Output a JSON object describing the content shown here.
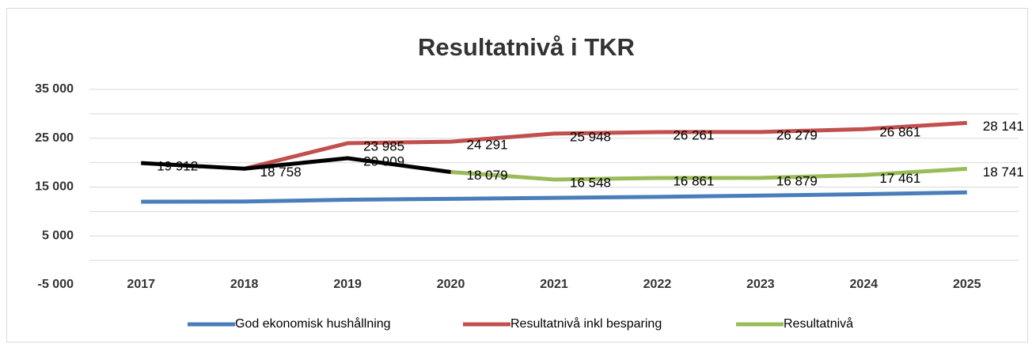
{
  "chart_data": {
    "type": "line",
    "title": "Resultatnivå i TKR",
    "categories": [
      "2017",
      "2018",
      "2019",
      "2020",
      "2021",
      "2022",
      "2023",
      "2024",
      "2025"
    ],
    "series": [
      {
        "name": "God ekonomisk hushållning",
        "color": "#4a7ebb",
        "values": [
          12000,
          12050,
          12400,
          12600,
          12800,
          13000,
          13250,
          13550,
          13900
        ]
      },
      {
        "name": "Resultatnivå inkl besparing",
        "color": "#c0504d",
        "values": [
          null,
          18758,
          23985,
          24291,
          25948,
          26261,
          26279,
          26861,
          28141
        ],
        "value_labels": [
          null,
          null,
          "23 985",
          "24 291",
          "25 948",
          "26 261",
          "26 279",
          "26 861",
          "28 141"
        ]
      },
      {
        "name": "Resultatnivå",
        "color": "#9bbb59",
        "values": [
          null,
          null,
          null,
          18079,
          16548,
          16861,
          16879,
          17461,
          18741
        ],
        "value_labels": [
          null,
          null,
          null,
          "18 079",
          "16 548",
          "16 861",
          "16 879",
          "17 461",
          "18 741"
        ]
      },
      {
        "color": "#000000",
        "values": [
          19912,
          18758,
          20909,
          18079,
          null,
          null,
          null,
          null,
          null
        ],
        "value_labels": [
          "19 912",
          "18 758",
          "20 909",
          null,
          null,
          null,
          null,
          null,
          null
        ]
      }
    ],
    "ylim": [
      -5000,
      35000
    ],
    "yticks": [
      {
        "value": -5000,
        "label": "-5 000"
      },
      {
        "value": 5000,
        "label": "5 000"
      },
      {
        "value": 15000,
        "label": "15 000"
      },
      {
        "value": 25000,
        "label": "25 000"
      },
      {
        "value": 35000,
        "label": "35 000"
      }
    ],
    "ygrid": [
      0,
      5000,
      10000,
      15000,
      20000,
      25000,
      30000,
      35000
    ],
    "legend": "bottom"
  }
}
